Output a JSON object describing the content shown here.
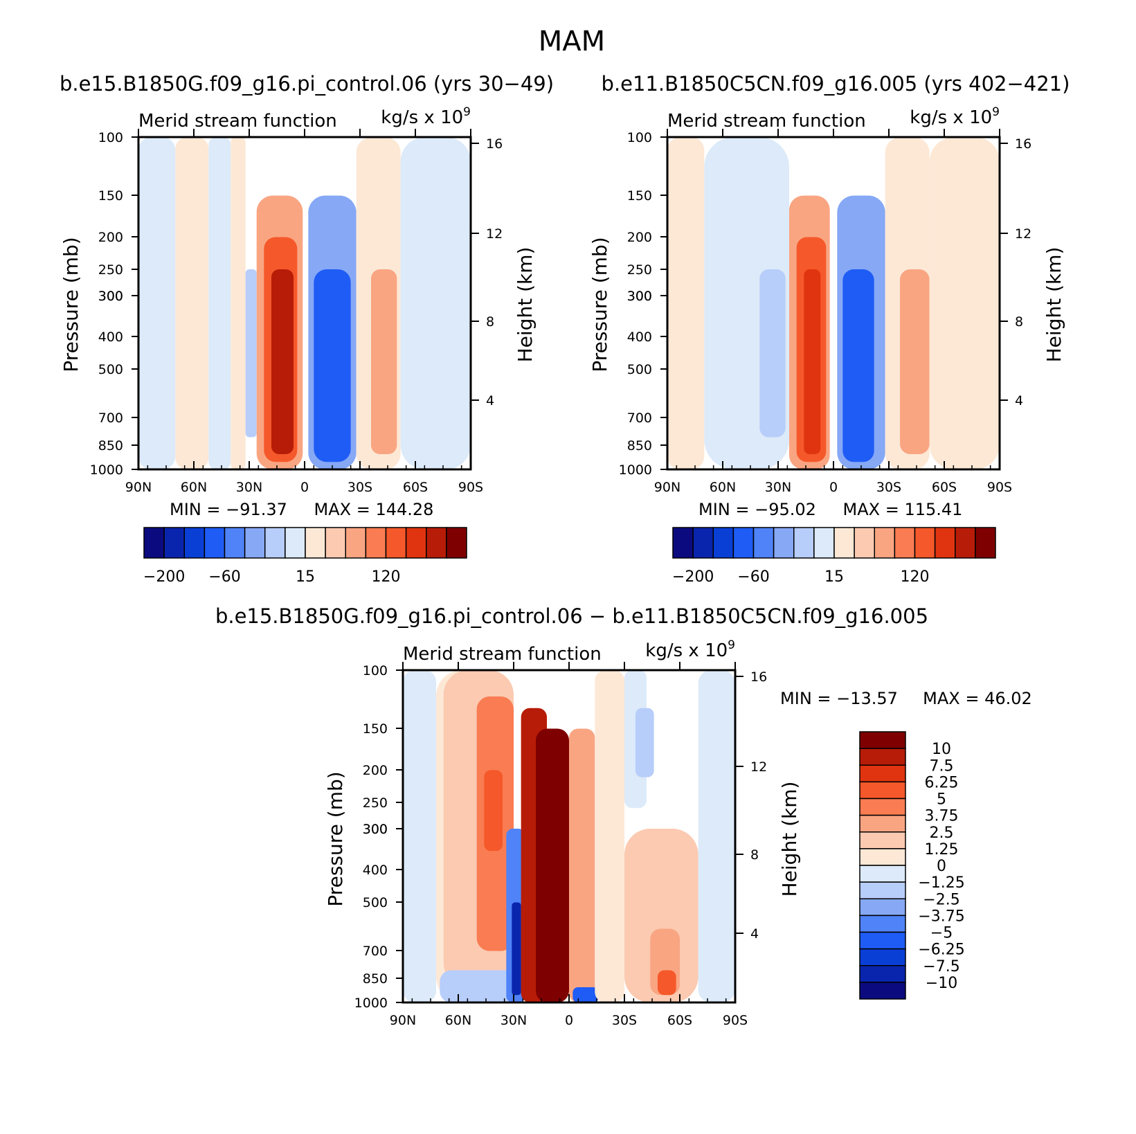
{
  "figure": {
    "title": "MAM",
    "panel_titles": [
      "b.e15.B1850G.f09_g16.pi_control.06 (yrs 30−49)",
      "b.e11.B1850C5CN.f09_g16.005 (yrs 402−421)",
      "b.e15.B1850G.f09_g16.pi_control.06 − b.e11.B1850C5CN.f09_g16.005"
    ]
  },
  "chart_data": [
    {
      "type": "heatmap",
      "title": "Merid stream function",
      "units": "kg/s x 10",
      "units_exp": "9",
      "xlabel": "",
      "ylabel": "Pressure (mb)",
      "ylabel_right": "Height (km)",
      "x_ticks": [
        "90N",
        "60N",
        "30N",
        "0",
        "30S",
        "60S",
        "90S"
      ],
      "x_range": [
        90,
        -90
      ],
      "y_ticks": [
        "100",
        "150",
        "200",
        "250",
        "300",
        "300",
        "400",
        "500",
        "700",
        "850",
        "1000"
      ],
      "y_range_mb": [
        1000,
        100
      ],
      "y_scale": "log",
      "height_ticks": [
        "16",
        "12",
        "8",
        "4"
      ],
      "min_label": "MIN = −91.37",
      "max_label": "MAX = 144.28",
      "min": -91.37,
      "max": 144.28,
      "colorbar_labels": [
        "−200",
        "−60",
        "15",
        "120"
      ],
      "colorbar_colors": [
        "#0b0b7f",
        "#0a25ad",
        "#0a3fd6",
        "#1f5cf5",
        "#4f83f7",
        "#86a8f5",
        "#b7cdfa",
        "#dceaf9",
        "#fde8d6",
        "#fbcab1",
        "#f9a582",
        "#f97c52",
        "#f5582a",
        "#e03410",
        "#b71c08",
        "#7f0000"
      ],
      "cells": [
        {
          "lat_from": 90,
          "lat_to": 70,
          "p_top": 100,
          "p_bot": 1000,
          "value": -5
        },
        {
          "lat_from": 70,
          "lat_to": 52,
          "p_top": 100,
          "p_bot": 1000,
          "value": 8
        },
        {
          "lat_from": 52,
          "lat_to": 40,
          "p_top": 100,
          "p_bot": 1000,
          "value": -5
        },
        {
          "lat_from": 40,
          "lat_to": 32,
          "p_top": 100,
          "p_bot": 1000,
          "value": 8
        },
        {
          "lat_from": 32,
          "lat_to": 26,
          "p_top": 250,
          "p_bot": 800,
          "value": -25
        },
        {
          "lat_from": 26,
          "lat_to": 1,
          "p_top": 150,
          "p_bot": 1000,
          "value": 40
        },
        {
          "lat_from": 22,
          "lat_to": 4,
          "p_top": 200,
          "p_bot": 950,
          "value": 80
        },
        {
          "lat_from": 18,
          "lat_to": 6,
          "p_top": 250,
          "p_bot": 900,
          "value": 120
        },
        {
          "lat_from": -2,
          "lat_to": -28,
          "p_top": 150,
          "p_bot": 1000,
          "value": -35
        },
        {
          "lat_from": -5,
          "lat_to": -25,
          "p_top": 250,
          "p_bot": 950,
          "value": -70
        },
        {
          "lat_from": -28,
          "lat_to": -52,
          "p_top": 100,
          "p_bot": 1000,
          "value": 8
        },
        {
          "lat_from": -36,
          "lat_to": -50,
          "p_top": 250,
          "p_bot": 900,
          "value": 30
        },
        {
          "lat_from": -52,
          "lat_to": -90,
          "p_top": 100,
          "p_bot": 1000,
          "value": -5
        }
      ]
    },
    {
      "type": "heatmap",
      "title": "Merid stream function",
      "units": "kg/s x 10",
      "units_exp": "9",
      "xlabel": "",
      "ylabel": "Pressure (mb)",
      "ylabel_right": "Height (km)",
      "x_ticks": [
        "90N",
        "60N",
        "30N",
        "0",
        "30S",
        "60S",
        "90S"
      ],
      "x_range": [
        90,
        -90
      ],
      "y_ticks": [
        "100",
        "150",
        "200",
        "250",
        "300",
        "300",
        "400",
        "500",
        "700",
        "850",
        "1000"
      ],
      "y_range_mb": [
        1000,
        100
      ],
      "y_scale": "log",
      "height_ticks": [
        "16",
        "12",
        "8",
        "4"
      ],
      "min_label": "MIN = −95.02",
      "max_label": "MAX = 115.41",
      "min": -95.02,
      "max": 115.41,
      "colorbar_labels": [
        "−200",
        "−60",
        "15",
        "120"
      ],
      "colorbar_colors": [
        "#0b0b7f",
        "#0a25ad",
        "#0a3fd6",
        "#1f5cf5",
        "#4f83f7",
        "#86a8f5",
        "#b7cdfa",
        "#dceaf9",
        "#fde8d6",
        "#fbcab1",
        "#f9a582",
        "#f97c52",
        "#f5582a",
        "#e03410",
        "#b71c08",
        "#7f0000"
      ],
      "cells": [
        {
          "lat_from": 90,
          "lat_to": 70,
          "p_top": 100,
          "p_bot": 1000,
          "value": 8
        },
        {
          "lat_from": 70,
          "lat_to": 24,
          "p_top": 100,
          "p_bot": 1000,
          "value": -5
        },
        {
          "lat_from": 40,
          "lat_to": 26,
          "p_top": 250,
          "p_bot": 800,
          "value": -25
        },
        {
          "lat_from": 24,
          "lat_to": 2,
          "p_top": 150,
          "p_bot": 1000,
          "value": 40
        },
        {
          "lat_from": 20,
          "lat_to": 4,
          "p_top": 200,
          "p_bot": 950,
          "value": 80
        },
        {
          "lat_from": 16,
          "lat_to": 7,
          "p_top": 250,
          "p_bot": 900,
          "value": 110
        },
        {
          "lat_from": -2,
          "lat_to": -28,
          "p_top": 150,
          "p_bot": 1000,
          "value": -35
        },
        {
          "lat_from": -5,
          "lat_to": -22,
          "p_top": 250,
          "p_bot": 950,
          "value": -70
        },
        {
          "lat_from": -28,
          "lat_to": -52,
          "p_top": 100,
          "p_bot": 1000,
          "value": 8
        },
        {
          "lat_from": -36,
          "lat_to": -52,
          "p_top": 250,
          "p_bot": 900,
          "value": 30
        },
        {
          "lat_from": -52,
          "lat_to": -90,
          "p_top": 100,
          "p_bot": 1000,
          "value": 8
        }
      ]
    },
    {
      "type": "heatmap",
      "title": "Merid stream function",
      "units": "kg/s x 10",
      "units_exp": "9",
      "xlabel": "",
      "ylabel": "Pressure (mb)",
      "ylabel_right": "Height (km)",
      "x_ticks": [
        "90N",
        "60N",
        "30N",
        "0",
        "30S",
        "60S",
        "90S"
      ],
      "x_range": [
        90,
        -90
      ],
      "y_ticks": [
        "100",
        "150",
        "200",
        "250",
        "300",
        "300",
        "400",
        "500",
        "700",
        "850",
        "1000"
      ],
      "y_range_mb": [
        1000,
        100
      ],
      "y_scale": "log",
      "height_ticks": [
        "16",
        "12",
        "8",
        "4"
      ],
      "min_label": "MIN = −13.57",
      "max_label": "MAX =  46.02",
      "min": -13.57,
      "max": 46.02,
      "colorbar_labels": [
        "10",
        "7.5",
        "6.25",
        "5",
        "3.75",
        "2.5",
        "1.25",
        "0",
        "−1.25",
        "−2.5",
        "−3.75",
        "−5",
        "−6.25",
        "−7.5",
        "−10"
      ],
      "colorbar_colors": [
        "#7f0000",
        "#b71c08",
        "#e03410",
        "#f5582a",
        "#f97c52",
        "#f9a582",
        "#fbcab1",
        "#fde8d6",
        "#dceaf9",
        "#b7cdfa",
        "#86a8f5",
        "#4f83f7",
        "#1f5cf5",
        "#0a3fd6",
        "#0a25ad",
        "#0b0b7f"
      ],
      "cells": [
        {
          "lat_from": 90,
          "lat_to": 72,
          "p_top": 100,
          "p_bot": 1000,
          "value": -0.5
        },
        {
          "lat_from": 72,
          "lat_to": 32,
          "p_top": 100,
          "p_bot": 1000,
          "value": 0.5
        },
        {
          "lat_from": 68,
          "lat_to": 30,
          "p_top": 100,
          "p_bot": 900,
          "value": 2
        },
        {
          "lat_from": 50,
          "lat_to": 30,
          "p_top": 120,
          "p_bot": 700,
          "value": 4.5
        },
        {
          "lat_from": 46,
          "lat_to": 36,
          "p_top": 200,
          "p_bot": 350,
          "value": 5.5
        },
        {
          "lat_from": 70,
          "lat_to": 28,
          "p_top": 800,
          "p_bot": 1000,
          "value": -2
        },
        {
          "lat_from": 34,
          "lat_to": 24,
          "p_top": 300,
          "p_bot": 1000,
          "value": -4
        },
        {
          "lat_from": 31,
          "lat_to": 26,
          "p_top": 500,
          "p_bot": 950,
          "value": -9
        },
        {
          "lat_from": 26,
          "lat_to": 12,
          "p_top": 130,
          "p_bot": 1000,
          "value": 8
        },
        {
          "lat_from": 18,
          "lat_to": 0,
          "p_top": 150,
          "p_bot": 1000,
          "value": 12
        },
        {
          "lat_from": 0,
          "lat_to": -14,
          "p_top": 150,
          "p_bot": 1000,
          "value": 3
        },
        {
          "lat_from": -2,
          "lat_to": -16,
          "p_top": 900,
          "p_bot": 1000,
          "value": -5
        },
        {
          "lat_from": -14,
          "lat_to": -30,
          "p_top": 100,
          "p_bot": 1000,
          "value": 0.5
        },
        {
          "lat_from": -30,
          "lat_to": -42,
          "p_top": 100,
          "p_bot": 260,
          "value": -0.5
        },
        {
          "lat_from": -36,
          "lat_to": -46,
          "p_top": 130,
          "p_bot": 210,
          "value": -2
        },
        {
          "lat_from": -30,
          "lat_to": -70,
          "p_top": 300,
          "p_bot": 1000,
          "value": 1.5
        },
        {
          "lat_from": -44,
          "lat_to": -60,
          "p_top": 600,
          "p_bot": 950,
          "value": 3
        },
        {
          "lat_from": -48,
          "lat_to": -58,
          "p_top": 800,
          "p_bot": 950,
          "value": 5.5
        },
        {
          "lat_from": -70,
          "lat_to": -90,
          "p_top": 100,
          "p_bot": 1000,
          "value": -0.5
        }
      ]
    }
  ]
}
